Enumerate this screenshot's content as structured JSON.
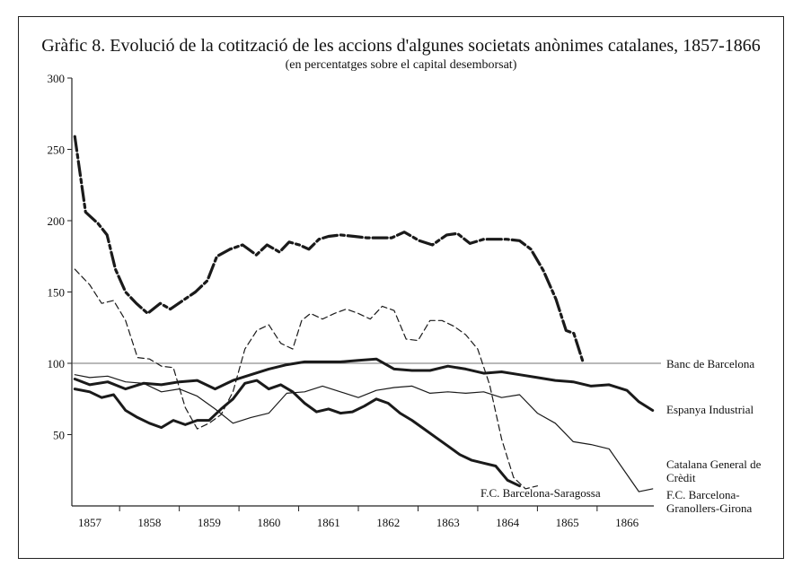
{
  "chart_data": {
    "type": "line",
    "title": "Gràfic 8. Evolució de la cotització de les accions d'algunes societats anònimes catalanes, 1857-1866",
    "subtitle": "(en percentatges sobre el capital desemborsat)",
    "xlabel": "",
    "ylabel": "",
    "xlim": [
      1856.7,
      1866.45
    ],
    "ylim": [
      0,
      300
    ],
    "y_ticks": [
      50,
      100,
      150,
      200,
      250,
      300
    ],
    "x_tick_labels": [
      "1857",
      "1858",
      "1859",
      "1860",
      "1861",
      "1862",
      "1863",
      "1864",
      "1865",
      "1866"
    ],
    "reference_line": 100,
    "grid": false,
    "series": [
      {
        "name": "Banc de Barcelona",
        "style": "dash-dot-bold",
        "x": [
          1856.75,
          1856.93,
          1857.14,
          1857.29,
          1857.43,
          1857.6,
          1857.78,
          1857.97,
          1858.18,
          1858.35,
          1858.56,
          1858.77,
          1858.97,
          1859.13,
          1859.35,
          1859.56,
          1859.79,
          1859.97,
          1860.18,
          1860.34,
          1860.51,
          1860.67,
          1860.84,
          1861.0,
          1861.2,
          1861.43,
          1861.64,
          1861.85,
          1862.06,
          1862.27,
          1862.52,
          1862.74,
          1862.98,
          1863.16,
          1863.37,
          1863.6,
          1863.81,
          1863.98,
          1864.2,
          1864.39,
          1864.6,
          1864.81,
          1864.98,
          1865.11,
          1865.27,
          1865.46,
          1865.64,
          1865.83,
          1866.02,
          1866.24,
          1866.43
        ],
        "y": [
          259,
          206,
          198,
          190,
          166,
          150,
          142,
          135,
          142,
          138,
          144,
          150,
          158,
          175,
          180,
          183,
          176,
          183,
          178,
          185,
          183,
          180,
          187,
          189,
          190,
          189,
          188,
          188,
          188,
          192,
          186,
          183,
          190,
          191,
          184,
          187,
          187,
          187,
          186,
          180,
          165,
          145,
          123,
          121,
          100,
          null,
          null,
          null,
          null,
          null,
          null
        ]
      },
      {
        "name": "Espanya Industrial",
        "style": "solid-bold",
        "x": [
          1856.75,
          1857.0,
          1857.3,
          1857.6,
          1857.9,
          1858.2,
          1858.5,
          1858.8,
          1859.1,
          1859.4,
          1859.7,
          1860.0,
          1860.3,
          1860.6,
          1860.9,
          1861.2,
          1861.5,
          1861.8,
          1862.1,
          1862.4,
          1862.7,
          1863.0,
          1863.3,
          1863.6,
          1863.9,
          1864.2,
          1864.5,
          1864.8,
          1865.1,
          1865.4,
          1865.7,
          1866.0,
          1866.2,
          1866.43
        ],
        "y": [
          89,
          85,
          87,
          82,
          86,
          85,
          87,
          88,
          82,
          88,
          92,
          96,
          99,
          101,
          101,
          101,
          102,
          103,
          96,
          95,
          95,
          98,
          96,
          93,
          94,
          92,
          90,
          88,
          87,
          84,
          85,
          81,
          73,
          67
        ]
      },
      {
        "name": "Catalana General de Crèdit",
        "style": "dashed",
        "x": [
          1856.75,
          1857.0,
          1857.2,
          1857.4,
          1857.6,
          1857.8,
          1858.0,
          1858.2,
          1858.4,
          1858.6,
          1858.8,
          1859.0,
          1859.2,
          1859.4,
          1859.6,
          1859.8,
          1860.0,
          1860.2,
          1860.4,
          1860.55,
          1860.7,
          1860.9,
          1861.1,
          1861.3,
          1861.5,
          1861.7,
          1861.9,
          1862.1,
          1862.3,
          1862.5,
          1862.7,
          1862.9,
          1863.1,
          1863.3,
          1863.5,
          1863.7,
          1863.9,
          1864.1,
          1864.3,
          1864.5,
          1864.7,
          1864.9,
          1865.1,
          1865.3,
          1865.5,
          1865.7,
          1865.9,
          1866.1,
          1866.3,
          1866.43
        ],
        "y": [
          166,
          155,
          142,
          144,
          130,
          104,
          103,
          98,
          97,
          69,
          54,
          58,
          64,
          80,
          110,
          123,
          127,
          114,
          110,
          130,
          135,
          131,
          135,
          138,
          135,
          131,
          140,
          137,
          117,
          116,
          130,
          130,
          126,
          120,
          110,
          85,
          47,
          20,
          12,
          14,
          null,
          null,
          null,
          null,
          null,
          null,
          null,
          null,
          null,
          null
        ]
      },
      {
        "name": "F.C. Barcelona-Granollers-Girona",
        "style": "solid-thin",
        "x": [
          1856.75,
          1857.0,
          1857.3,
          1857.6,
          1857.9,
          1858.2,
          1858.5,
          1858.8,
          1859.1,
          1859.4,
          1859.7,
          1860.0,
          1860.3,
          1860.6,
          1860.9,
          1861.2,
          1861.5,
          1861.8,
          1862.1,
          1862.4,
          1862.7,
          1863.0,
          1863.3,
          1863.6,
          1863.9,
          1864.2,
          1864.5,
          1864.8,
          1865.1,
          1865.4,
          1865.7,
          1866.0,
          1866.2,
          1866.43
        ],
        "y": [
          92,
          90,
          91,
          87,
          86,
          80,
          82,
          77,
          68,
          58,
          62,
          65,
          79,
          80,
          84,
          80,
          76,
          81,
          83,
          84,
          79,
          80,
          79,
          80,
          76,
          78,
          65,
          58,
          45,
          43,
          40,
          22,
          10,
          12
        ]
      },
      {
        "name": "F.C. Barcelona-Saragossa",
        "style": "solid-bold",
        "x": [
          1856.75,
          1857.0,
          1857.2,
          1857.4,
          1857.6,
          1857.8,
          1858.0,
          1858.2,
          1858.4,
          1858.6,
          1858.8,
          1859.0,
          1859.2,
          1859.4,
          1859.6,
          1859.8,
          1860.0,
          1860.2,
          1860.4,
          1860.6,
          1860.8,
          1861.0,
          1861.2,
          1861.4,
          1861.6,
          1861.8,
          1862.0,
          1862.2,
          1862.4,
          1862.6,
          1862.8,
          1863.0,
          1863.2,
          1863.4,
          1863.6,
          1863.8,
          1864.0,
          1864.2,
          1864.4,
          1864.6,
          1864.8,
          1865.0,
          1865.2,
          1865.4,
          1865.6
        ],
        "y": [
          82,
          80,
          76,
          78,
          67,
          62,
          58,
          55,
          60,
          57,
          60,
          60,
          68,
          75,
          86,
          88,
          82,
          85,
          80,
          72,
          66,
          68,
          65,
          66,
          70,
          75,
          72,
          65,
          60,
          54,
          48,
          42,
          36,
          32,
          30,
          28,
          18,
          14,
          null,
          null,
          null,
          null,
          null,
          null,
          null
        ]
      }
    ],
    "legend_placement": "right"
  }
}
